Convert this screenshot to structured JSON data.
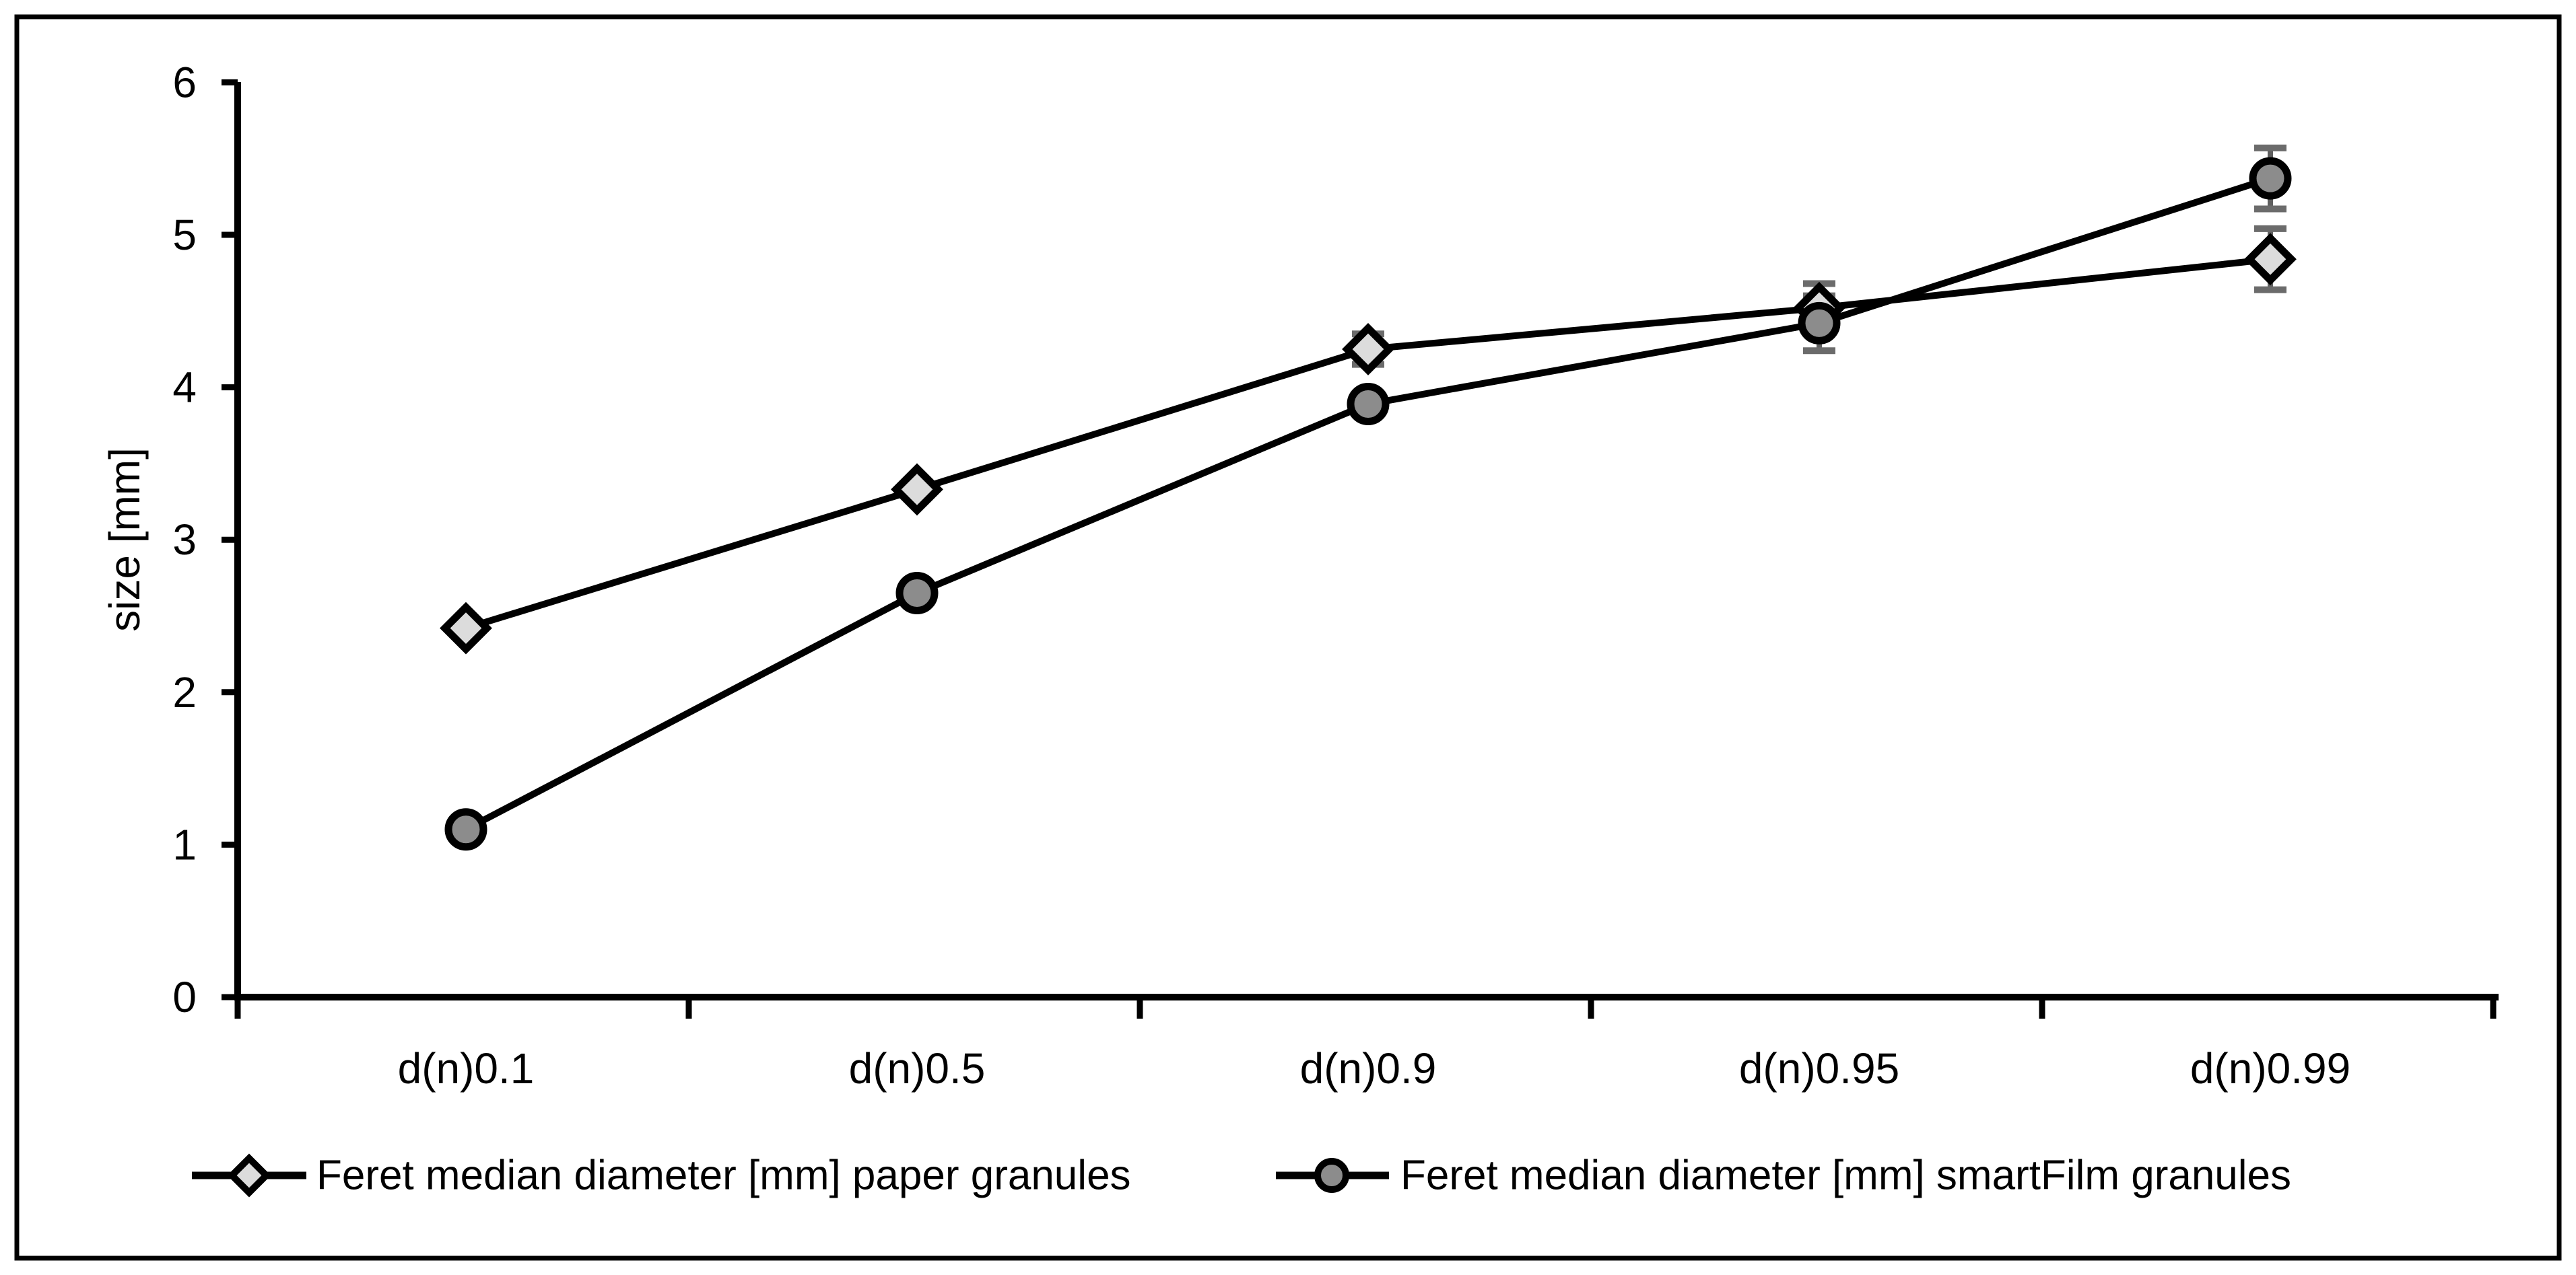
{
  "figure": {
    "background": "#ffffff",
    "border_color": "#000000"
  },
  "chart_data": {
    "type": "line",
    "title": "",
    "xlabel": "",
    "ylabel": "size [mm]",
    "ylim": [
      0,
      6
    ],
    "y_ticks": [
      0,
      1,
      2,
      3,
      4,
      5,
      6
    ],
    "grid": false,
    "legend_position": "bottom",
    "categories": [
      "d(n)0.1",
      "d(n)0.5",
      "d(n)0.9",
      "d(n)0.95",
      "d(n)0.99"
    ],
    "series": [
      {
        "name": "Feret median diameter [mm] paper granules",
        "marker": "diamond",
        "marker_fill": "#dcdcdc",
        "line_color": "#000000",
        "values": [
          2.42,
          3.33,
          4.25,
          4.52,
          4.84
        ],
        "error": [
          null,
          null,
          0.1,
          0.16,
          0.2
        ]
      },
      {
        "name": "Feret median diameter [mm] smartFilm granules",
        "marker": "circle",
        "marker_fill": "#8c8c8c",
        "line_color": "#000000",
        "values": [
          1.1,
          2.65,
          3.89,
          4.42,
          5.37
        ],
        "error": [
          null,
          null,
          null,
          0.18,
          0.2
        ]
      }
    ],
    "error_bar_color": "#5f5f5f",
    "error_cap_color": "#6b6b6b"
  }
}
